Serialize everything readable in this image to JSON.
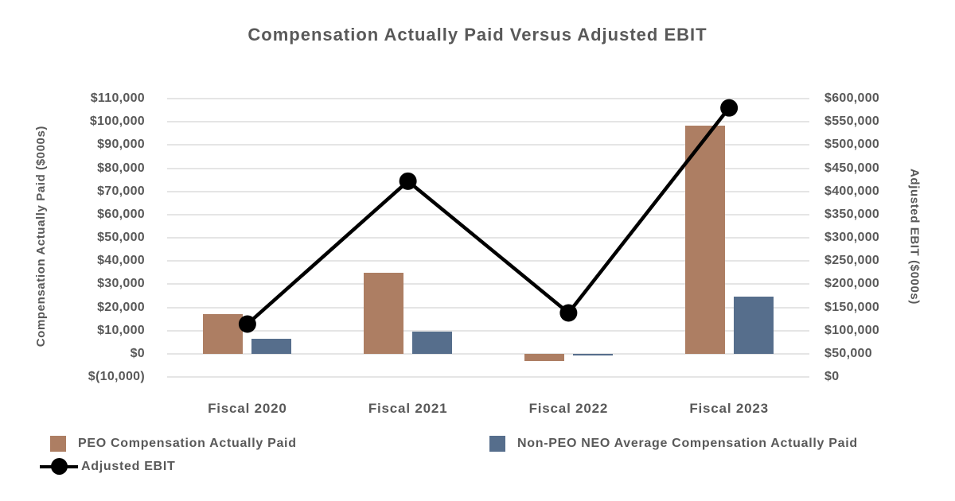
{
  "title": "Compensation Actually Paid Versus Adjusted EBIT",
  "styles": {
    "text_color": "#595959",
    "gridline_color": "#e5e5e5",
    "background": "#ffffff",
    "peo_bar_color": "#ad7e63",
    "neo_bar_color": "#566e8c",
    "line_color": "#000000"
  },
  "chart_data": {
    "type": "combo (bar + line)",
    "title": "Compensation Actually Paid Versus Adjusted EBIT",
    "categories": [
      "Fiscal 2020",
      "Fiscal 2021",
      "Fiscal 2022",
      "Fiscal 2023"
    ],
    "series": [
      {
        "name": "PEO Compensation Actually Paid",
        "type": "bar",
        "axis": "left",
        "color": "#ad7e63",
        "values": [
          17000,
          35000,
          -3200,
          98500
        ]
      },
      {
        "name": "Non-PEO NEO Average Compensation Actually Paid",
        "type": "bar",
        "axis": "left",
        "color": "#566e8c",
        "values": [
          6300,
          9400,
          -700,
          24500
        ]
      },
      {
        "name": "Adjusted EBIT",
        "type": "line",
        "axis": "right",
        "color": "#000000",
        "marker": "circle",
        "values": [
          114000,
          422000,
          138000,
          580000
        ]
      }
    ],
    "left_axis": {
      "title": "Compensation Actually Paid ($000s)",
      "min": -10000,
      "max": 110000,
      "step": 10000,
      "tick_labels": [
        "$110,000",
        "$100,000",
        "$90,000",
        "$80,000",
        "$70,000",
        "$60,000",
        "$50,000",
        "$40,000",
        "$30,000",
        "$20,000",
        "$10,000",
        "$0",
        "$(10,000)"
      ]
    },
    "right_axis": {
      "title": "Adjusted EBIT ($000s)",
      "min": 0,
      "max": 600000,
      "step": 50000,
      "tick_labels": [
        "$600,000",
        "$550,000",
        "$500,000",
        "$450,000",
        "$400,000",
        "$350,000",
        "$300,000",
        "$250,000",
        "$200,000",
        "$150,000",
        "$100,000",
        "$50,000",
        "$0"
      ]
    },
    "grid": true,
    "legend_position": "bottom"
  }
}
